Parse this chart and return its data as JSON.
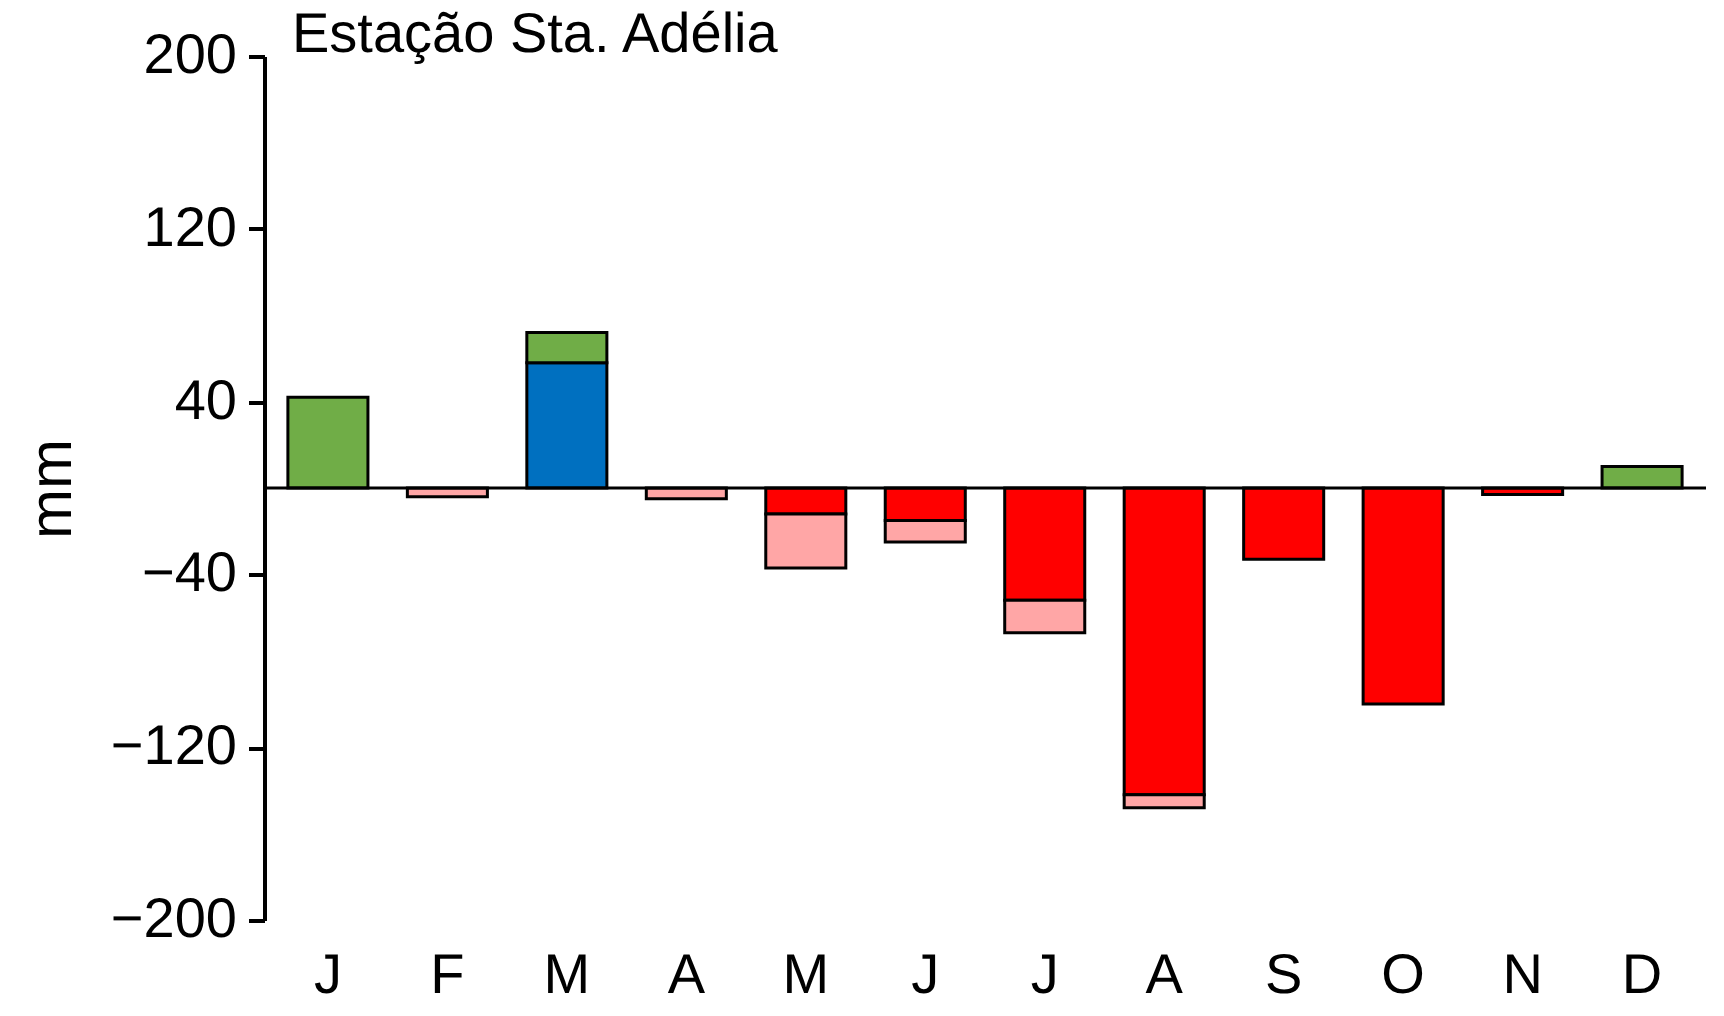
{
  "chart_data": {
    "type": "bar",
    "stacked": true,
    "title": "Estação Sta. Adélia",
    "ylabel": "mm",
    "categories": [
      "J",
      "F",
      "M",
      "A",
      "M",
      "J",
      "J",
      "A",
      "S",
      "O",
      "N",
      "D"
    ],
    "series": [
      {
        "color": "#0070c0",
        "values": [
          null,
          null,
          58,
          null,
          null,
          null,
          null,
          null,
          null,
          null,
          null,
          null
        ]
      },
      {
        "color": "#70ad47",
        "values": [
          42,
          null,
          14,
          null,
          null,
          null,
          null,
          null,
          null,
          null,
          null,
          10
        ]
      },
      {
        "color": "#ff0000",
        "values": [
          null,
          null,
          null,
          null,
          -12,
          -15,
          -52,
          -142,
          -33,
          -100,
          -3,
          null
        ]
      },
      {
        "color": "#ffa6a6",
        "values": [
          null,
          -4,
          null,
          -5,
          -25,
          -10,
          -15,
          -6,
          null,
          null,
          null,
          null
        ]
      }
    ],
    "ylim": [
      -200,
      200
    ],
    "yticks": [
      -200,
      -120,
      -40,
      40,
      120,
      200
    ],
    "grid": false,
    "legend": false
  }
}
